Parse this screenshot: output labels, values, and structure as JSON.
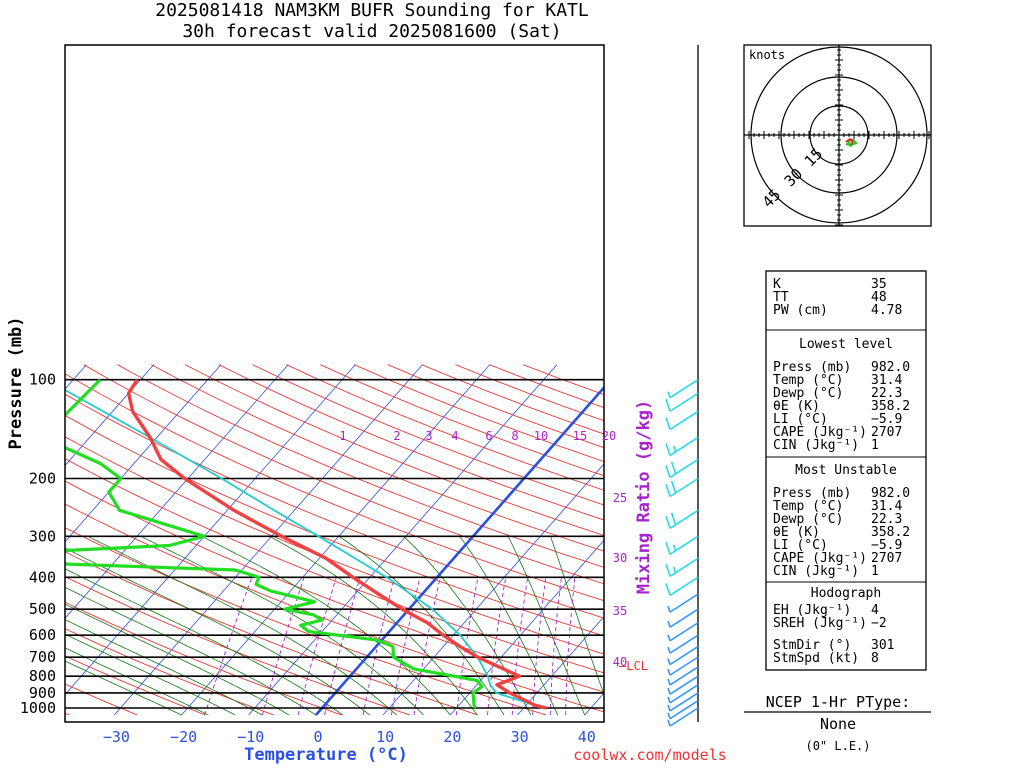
{
  "header": {
    "line1": "2025081418 NAM3KM BUFR Sounding for KATL",
    "line2": "30h forecast valid 2025081600 (Sat)"
  },
  "axes": {
    "ylabel": "Pressure (mb)",
    "xlabel": "Temperature (°C)",
    "y_ticks": [
      "100",
      "200",
      "300",
      "400",
      "500",
      "600",
      "700",
      "800",
      "900",
      "1000"
    ],
    "x_ticks": [
      "−30",
      "−20",
      "−10",
      "0",
      "10",
      "20",
      "30",
      "40"
    ],
    "mixing_ratio_label": "Mixing Ratio (g/kg)",
    "mixing_ratio_ticks_top": [
      "1",
      "2",
      "3",
      "4",
      "6",
      "8",
      "10",
      "15",
      "20"
    ],
    "mixing_ratio_ticks_side": [
      "25",
      "30",
      "35",
      "40"
    ],
    "lcl_label": "LCL"
  },
  "colors": {
    "temperature": "#f04040",
    "dewpoint": "#22dd22",
    "parcel": "#22cccc",
    "freezing_isotherm": "#2a50e0",
    "isotherms": "#3050e8",
    "dry_adiabats": "#ee2222",
    "moist_adiabats": "#117711",
    "mixing_ratio": "#aa22cc",
    "wind_barbs_low": "#3399ff",
    "wind_barbs_high": "#22ddee"
  },
  "chart_data": {
    "type": "skew-t",
    "pressure_levels_mb": [
      100,
      200,
      300,
      400,
      500,
      600,
      700,
      800,
      900,
      1000
    ],
    "temperature_range_c": [
      -40,
      40
    ],
    "temperature_profile": [
      {
        "p": 1000,
        "t": 33.4
      },
      {
        "p": 982,
        "t": 31.4
      },
      {
        "p": 900,
        "t": 26.0
      },
      {
        "p": 850,
        "t": 23.0
      },
      {
        "p": 800,
        "t": 25.2
      },
      {
        "p": 750,
        "t": 21.0
      },
      {
        "p": 700,
        "t": 16.5
      },
      {
        "p": 650,
        "t": 12.5
      },
      {
        "p": 600,
        "t": 8.5
      },
      {
        "p": 550,
        "t": 4.5
      },
      {
        "p": 500,
        "t": -1.0
      },
      {
        "p": 450,
        "t": -6.5
      },
      {
        "p": 400,
        "t": -12.5
      },
      {
        "p": 350,
        "t": -19.0
      },
      {
        "p": 300,
        "t": -28.5
      },
      {
        "p": 250,
        "t": -39.0
      },
      {
        "p": 200,
        "t": -50.5
      },
      {
        "p": 175,
        "t": -56.5
      },
      {
        "p": 150,
        "t": -61.0
      },
      {
        "p": 125,
        "t": -67.0
      },
      {
        "p": 110,
        "t": -70.0
      },
      {
        "p": 100,
        "t": -70.5
      }
    ],
    "dewpoint_profile": [
      {
        "p": 1000,
        "t": 22.8
      },
      {
        "p": 982,
        "t": 22.3
      },
      {
        "p": 900,
        "t": 20.5
      },
      {
        "p": 860,
        "t": 21.0
      },
      {
        "p": 825,
        "t": 19.5
      },
      {
        "p": 800,
        "t": 15.5
      },
      {
        "p": 760,
        "t": 8.5
      },
      {
        "p": 700,
        "t": 4.0
      },
      {
        "p": 650,
        "t": 2.5
      },
      {
        "p": 640,
        "t": 1.5
      },
      {
        "p": 620,
        "t": -1.0
      },
      {
        "p": 585,
        "t": -12.0
      },
      {
        "p": 560,
        "t": -14.0
      },
      {
        "p": 540,
        "t": -11.5
      },
      {
        "p": 520,
        "t": -13.5
      },
      {
        "p": 500,
        "t": -18.5
      },
      {
        "p": 475,
        "t": -15.0
      },
      {
        "p": 440,
        "t": -23.0
      },
      {
        "p": 420,
        "t": -26.0
      },
      {
        "p": 400,
        "t": -26.5
      },
      {
        "p": 380,
        "t": -31.0
      },
      {
        "p": 350,
        "t": -82.0
      },
      {
        "p": 320,
        "t": -44.0
      },
      {
        "p": 300,
        "t": -40.0
      },
      {
        "p": 250,
        "t": -56.0
      },
      {
        "p": 220,
        "t": -60.0
      },
      {
        "p": 200,
        "t": -60.0
      },
      {
        "p": 180,
        "t": -65.0
      },
      {
        "p": 150,
        "t": -77.0
      },
      {
        "p": 100,
        "t": -76.0
      }
    ],
    "parcel_profile": [
      {
        "p": 982,
        "t": 31.4
      },
      {
        "p": 900,
        "t": 24.0
      },
      {
        "p": 850,
        "t": 22.0
      },
      {
        "p": 800,
        "t": 20.5
      },
      {
        "p": 700,
        "t": 16.5
      },
      {
        "p": 600,
        "t": 11.0
      },
      {
        "p": 500,
        "t": 3.5
      },
      {
        "p": 400,
        "t": -7.5
      },
      {
        "p": 300,
        "t": -23.0
      },
      {
        "p": 250,
        "t": -33.0
      },
      {
        "p": 200,
        "t": -45.0
      },
      {
        "p": 150,
        "t": -61.0
      },
      {
        "p": 100,
        "t": -84.0
      }
    ],
    "wind_barbs": [
      {
        "p": 1000,
        "speed_kt": 5
      },
      {
        "p": 950,
        "speed_kt": 5
      },
      {
        "p": 900,
        "speed_kt": 5
      },
      {
        "p": 850,
        "speed_kt": 5
      },
      {
        "p": 800,
        "speed_kt": 5
      },
      {
        "p": 750,
        "speed_kt": 5
      },
      {
        "p": 700,
        "speed_kt": 5
      },
      {
        "p": 650,
        "speed_kt": 5
      },
      {
        "p": 600,
        "speed_kt": 5
      },
      {
        "p": 550,
        "speed_kt": 5
      },
      {
        "p": 500,
        "speed_kt": 5
      },
      {
        "p": 450,
        "speed_kt": 5
      },
      {
        "p": 400,
        "speed_kt": 10
      },
      {
        "p": 350,
        "speed_kt": 15
      },
      {
        "p": 300,
        "speed_kt": 15
      },
      {
        "p": 250,
        "speed_kt": 20
      },
      {
        "p": 200,
        "speed_kt": 20
      },
      {
        "p": 175,
        "speed_kt": 20
      },
      {
        "p": 150,
        "speed_kt": 15
      },
      {
        "p": 125,
        "speed_kt": 10
      },
      {
        "p": 110,
        "speed_kt": 10
      },
      {
        "p": 100,
        "speed_kt": 5
      }
    ]
  },
  "hodograph": {
    "units": "knots",
    "ring_labels": [
      "15",
      "30",
      "45"
    ]
  },
  "stats": {
    "indices": [
      {
        "label": "K",
        "value": "35"
      },
      {
        "label": "TT",
        "value": "48"
      },
      {
        "label": "PW (cm)",
        "value": "4.78"
      }
    ],
    "lowest_level": {
      "title": "Lowest level",
      "rows": [
        {
          "label": "Press (mb)",
          "value": "982.0"
        },
        {
          "label": "Temp (°C)",
          "value": "31.4"
        },
        {
          "label": "Dewp (°C)",
          "value": "22.3"
        },
        {
          "label": "θE (K)",
          "value": "358.2"
        },
        {
          "label": "LI (°C)",
          "value": "−5.9"
        },
        {
          "label": "CAPE (Jkg⁻¹)",
          "value": "2707"
        },
        {
          "label": "CIN (Jkg⁻¹)",
          "value": "1"
        }
      ]
    },
    "most_unstable": {
      "title": "Most Unstable",
      "rows": [
        {
          "label": "Press (mb)",
          "value": "982.0"
        },
        {
          "label": "Temp (°C)",
          "value": "31.4"
        },
        {
          "label": "Dewp (°C)",
          "value": "22.3"
        },
        {
          "label": "θE (K)",
          "value": "358.2"
        },
        {
          "label": "LI (°C)",
          "value": "−5.9"
        },
        {
          "label": "CAPE (Jkg⁻¹)",
          "value": "2707"
        },
        {
          "label": "CIN (Jkg⁻¹)",
          "value": "1"
        }
      ]
    },
    "hodograph_stats": {
      "title": "Hodograph",
      "rows": [
        {
          "label": "EH (Jkg⁻¹)",
          "value": "4"
        },
        {
          "label": "SREH (Jkg⁻¹)",
          "value": "−2"
        },
        {
          "label": "StmDir (°)",
          "value": "301"
        },
        {
          "label": "StmSpd (kt)",
          "value": "8"
        }
      ]
    }
  },
  "ptype": {
    "title": "NCEP 1-Hr PType:",
    "value": "None",
    "accum": "(0\" L.E.)"
  },
  "credit": "coolwx.com/models"
}
